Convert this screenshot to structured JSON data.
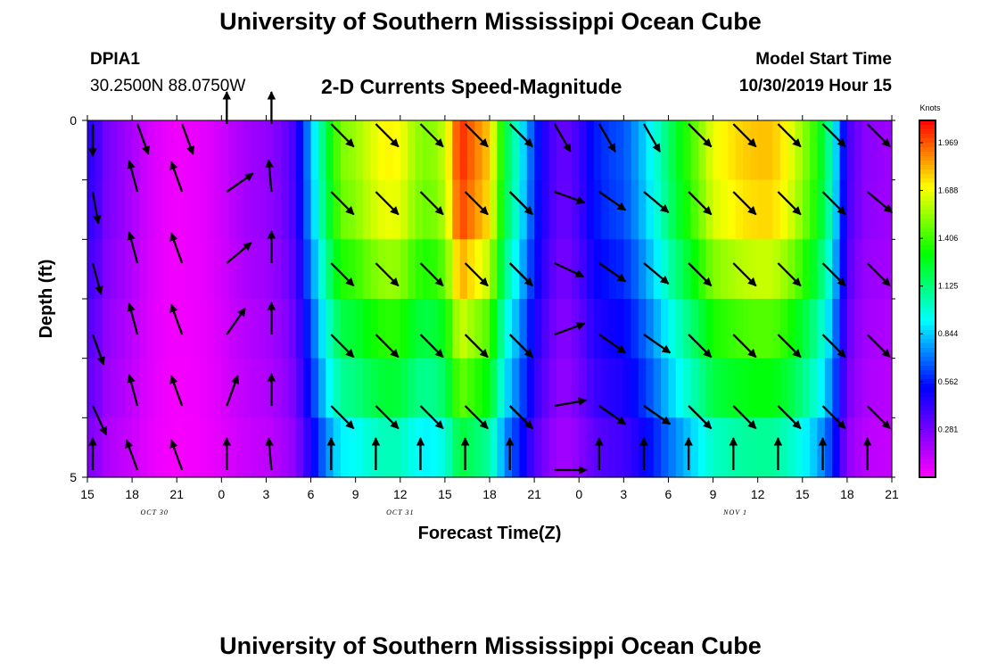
{
  "header": {
    "title": "University of Southern Mississippi Ocean Cube",
    "station_id": "DPIA1",
    "station_coords": "30.2500N 88.0750W",
    "subtitle": "2-D Currents Speed-Magnitude",
    "model_start_label": "Model Start Time",
    "model_start_time": "10/30/2019 Hour 15"
  },
  "footer": {
    "title": "University of Southern Mississippi Ocean Cube"
  },
  "chart_data": {
    "type": "heatmap",
    "title": "2-D Currents Speed-Magnitude",
    "xlabel": "Forecast Time(Z)",
    "ylabel": "Depth (ft)",
    "x_range_hours": [
      0,
      54
    ],
    "x_ticks": [
      {
        "hour": 0,
        "label": "15"
      },
      {
        "hour": 3,
        "label": "18"
      },
      {
        "hour": 6,
        "label": "21"
      },
      {
        "hour": 9,
        "label": "0"
      },
      {
        "hour": 12,
        "label": "3"
      },
      {
        "hour": 15,
        "label": "6"
      },
      {
        "hour": 18,
        "label": "9"
      },
      {
        "hour": 21,
        "label": "12"
      },
      {
        "hour": 24,
        "label": "15"
      },
      {
        "hour": 27,
        "label": "18"
      },
      {
        "hour": 30,
        "label": "21"
      },
      {
        "hour": 33,
        "label": "0"
      },
      {
        "hour": 36,
        "label": "3"
      },
      {
        "hour": 39,
        "label": "6"
      },
      {
        "hour": 42,
        "label": "9"
      },
      {
        "hour": 45,
        "label": "12"
      },
      {
        "hour": 48,
        "label": "15"
      },
      {
        "hour": 51,
        "label": "18"
      },
      {
        "hour": 54,
        "label": "21"
      }
    ],
    "day_labels": [
      {
        "hour": 4.5,
        "label": "OCT 30"
      },
      {
        "hour": 21,
        "label": "OCT 31"
      },
      {
        "hour": 43.5,
        "label": "NOV 1"
      }
    ],
    "y_range": [
      0,
      5
    ],
    "y_ticks": [
      {
        "value": 0,
        "label": "0"
      },
      {
        "value": 5,
        "label": "5"
      }
    ],
    "depth_layers": 5,
    "colorbar": {
      "unit": "Knots",
      "min": 0.0,
      "max": 2.1,
      "ticks": [
        1.969,
        1.688,
        1.406,
        1.125,
        0.844,
        0.562,
        0.281
      ],
      "tick_labels": [
        "1.969",
        "1.688",
        "1.406",
        "1.125",
        "0.844",
        "0.562",
        "0.281"
      ]
    },
    "speed_by_hour_surface": [
      [
        0,
        0.4
      ],
      [
        0.5,
        0.45
      ],
      [
        1,
        0.3
      ],
      [
        2,
        0.24
      ],
      [
        3,
        0.18
      ],
      [
        4,
        0.1
      ],
      [
        5,
        0.05
      ],
      [
        6,
        0.03
      ],
      [
        7,
        0.04
      ],
      [
        8,
        0.06
      ],
      [
        9,
        0.1
      ],
      [
        10,
        0.16
      ],
      [
        11,
        0.2
      ],
      [
        12,
        0.22
      ],
      [
        13,
        0.28
      ],
      [
        14,
        0.4
      ],
      [
        15,
        0.8
      ],
      [
        16,
        1.2
      ],
      [
        17,
        1.5
      ],
      [
        18,
        1.55
      ],
      [
        19,
        1.65
      ],
      [
        20,
        1.72
      ],
      [
        21,
        1.7
      ],
      [
        22,
        1.55
      ],
      [
        23,
        1.5
      ],
      [
        24,
        1.62
      ],
      [
        25,
        2.05
      ],
      [
        26,
        1.92
      ],
      [
        27,
        1.78
      ],
      [
        28,
        1.25
      ],
      [
        29,
        0.95
      ],
      [
        30,
        0.6
      ],
      [
        31,
        0.4
      ],
      [
        32,
        0.3
      ],
      [
        33,
        0.4
      ],
      [
        34,
        0.55
      ],
      [
        35,
        0.62
      ],
      [
        36,
        0.65
      ],
      [
        37,
        0.78
      ],
      [
        38,
        0.95
      ],
      [
        39,
        1.15
      ],
      [
        40,
        1.32
      ],
      [
        41,
        1.5
      ],
      [
        42,
        1.68
      ],
      [
        43,
        1.73
      ],
      [
        44,
        1.78
      ],
      [
        45,
        1.8
      ],
      [
        46,
        1.8
      ],
      [
        47,
        1.7
      ],
      [
        48,
        1.55
      ],
      [
        49,
        1.35
      ],
      [
        50,
        1.0
      ],
      [
        51,
        0.4
      ],
      [
        52,
        0.25
      ],
      [
        53,
        0.22
      ],
      [
        54,
        0.2
      ]
    ],
    "speed_factor_by_layer": [
      1.0,
      0.98,
      0.9,
      0.8,
      0.72,
      0.6
    ],
    "arrow_hours": [
      0,
      3,
      6,
      9,
      12,
      16,
      19,
      22,
      25,
      28,
      31,
      34,
      37,
      40,
      43,
      46,
      49,
      52
    ],
    "arrow_depths": [
      0.05,
      1.0,
      2.0,
      3.0,
      4.0,
      4.9
    ],
    "arrow_directions_deg": [
      [
        180,
        160,
        160,
        0,
        0,
        135,
        135,
        135,
        135,
        135,
        150,
        150,
        150,
        135,
        135,
        135,
        135,
        135
      ],
      [
        170,
        -15,
        -20,
        55,
        -5,
        135,
        135,
        135,
        135,
        135,
        110,
        125,
        130,
        135,
        135,
        135,
        135,
        130
      ],
      [
        165,
        -15,
        -20,
        50,
        0,
        135,
        135,
        135,
        135,
        135,
        115,
        125,
        130,
        135,
        135,
        135,
        135,
        135
      ],
      [
        160,
        -15,
        -20,
        35,
        0,
        135,
        135,
        135,
        135,
        135,
        70,
        125,
        125,
        135,
        135,
        135,
        135,
        135
      ],
      [
        155,
        -15,
        -20,
        20,
        0,
        135,
        135,
        135,
        135,
        135,
        80,
        125,
        125,
        135,
        135,
        135,
        135,
        135
      ],
      [
        0,
        -20,
        -20,
        0,
        -5,
        0,
        0,
        0,
        0,
        0,
        90,
        0,
        0,
        0,
        0,
        0,
        0,
        0
      ]
    ]
  }
}
